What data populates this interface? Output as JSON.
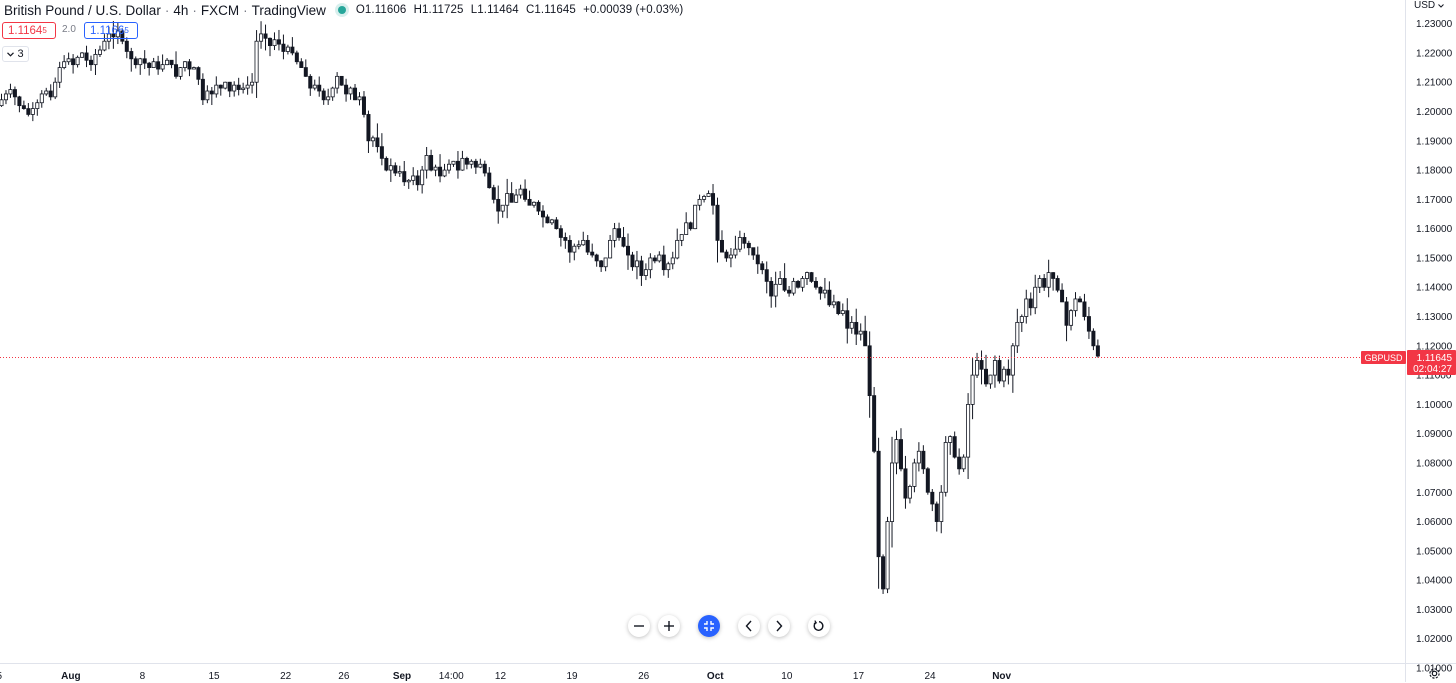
{
  "header": {
    "symbol": "British Pound / U.S. Dollar",
    "interval": "4h",
    "exchange": "FXCM",
    "platform": "TradingView",
    "open": "O1.11606",
    "high": "H1.11725",
    "low": "L1.11464",
    "close": "C1.11645",
    "change": "+0.00039 (+0.03%)"
  },
  "trade": {
    "sell_price": "1.1164",
    "sell_sup": "5",
    "spread": "2.0",
    "buy_price": "1.1166",
    "buy_sup": "5"
  },
  "indicators": {
    "count": "3",
    "chevron_icon": "chevron-down-icon"
  },
  "currency": "USD",
  "price_label": {
    "symbol": "GBPUSD",
    "value": "1.11645",
    "countdown": "02:04:27",
    "color": "#f23645"
  },
  "controls": [
    "zoom-out-icon",
    "zoom-in-icon",
    "reset-scale-icon",
    "scroll-left-icon",
    "scroll-right-icon",
    "reset-chart-icon"
  ],
  "colors": {
    "candle": "#131722",
    "accent": "#2962ff",
    "current_price": "#f23645"
  },
  "chart_data": {
    "type": "candlestick",
    "title": "",
    "xlabel": "",
    "ylabel": "",
    "ylim": [
      1.01,
      1.235
    ],
    "y_ticks": [
      "1.23000",
      "1.22000",
      "1.21000",
      "1.20000",
      "1.19000",
      "1.18000",
      "1.17000",
      "1.16000",
      "1.15000",
      "1.14000",
      "1.13000",
      "1.12000",
      "1.11000",
      "1.10000",
      "1.09000",
      "1.08000",
      "1.07000",
      "1.06000",
      "1.05000",
      "1.04000",
      "1.03000",
      "1.02000",
      "1.01000"
    ],
    "x_ticks": [
      {
        "label": "5",
        "idx": -0.5
      },
      {
        "label": "Aug",
        "idx": 15.5
      },
      {
        "label": "8",
        "idx": 31.5
      },
      {
        "label": "15",
        "idx": 47.5
      },
      {
        "label": "22",
        "idx": 63.5
      },
      {
        "label": "26",
        "idx": 76.5
      },
      {
        "label": "Sep",
        "idx": 89.5
      },
      {
        "label": "14:00",
        "idx": 100.5
      },
      {
        "label": "12",
        "idx": 111.5
      },
      {
        "label": "19",
        "idx": 127.5
      },
      {
        "label": "26",
        "idx": 143.5
      },
      {
        "label": "Oct",
        "idx": 159.5
      },
      {
        "label": "10",
        "idx": 175.5
      },
      {
        "label": "17",
        "idx": 191.5
      },
      {
        "label": "24",
        "idx": 207.5
      },
      {
        "label": "Nov",
        "idx": 223.5
      }
    ],
    "series_close": [
      1.204,
      1.206,
      1.2075,
      1.205,
      1.202,
      1.201,
      1.199,
      1.201,
      1.203,
      1.206,
      1.207,
      1.205,
      1.21,
      1.215,
      1.217,
      1.218,
      1.216,
      1.2185,
      1.22,
      1.2175,
      1.216,
      1.2195,
      1.221,
      1.224,
      1.2265,
      1.2255,
      1.2275,
      1.224,
      1.2205,
      1.218,
      1.216,
      1.218,
      1.2165,
      1.215,
      1.217,
      1.2145,
      1.216,
      1.2175,
      1.216,
      1.212,
      1.215,
      1.217,
      1.2145,
      1.215,
      1.211,
      1.204,
      1.207,
      1.206,
      1.209,
      1.208,
      1.21,
      1.207,
      1.209,
      1.2075,
      1.208,
      1.209,
      1.21,
      1.224,
      1.2265,
      1.225,
      1.2225,
      1.2245,
      1.223,
      1.2205,
      1.222,
      1.22,
      1.217,
      1.215,
      1.212,
      1.208,
      1.209,
      1.207,
      1.204,
      1.205,
      1.208,
      1.212,
      1.209,
      1.206,
      1.208,
      1.204,
      1.205,
      1.199,
      1.19,
      1.191,
      1.188,
      1.184,
      1.18,
      1.1815,
      1.179,
      1.1795,
      1.176,
      1.1765,
      1.178,
      1.175,
      1.18,
      1.185,
      1.18,
      1.181,
      1.178,
      1.18,
      1.182,
      1.183,
      1.18,
      1.184,
      1.182,
      1.183,
      1.181,
      1.182,
      1.179,
      1.174,
      1.17,
      1.166,
      1.168,
      1.172,
      1.169,
      1.1715,
      1.1735,
      1.17,
      1.168,
      1.169,
      1.166,
      1.164,
      1.162,
      1.163,
      1.16,
      1.157,
      1.156,
      1.152,
      1.154,
      1.1545,
      1.156,
      1.152,
      1.151,
      1.149,
      1.147,
      1.15,
      1.156,
      1.16,
      1.157,
      1.154,
      1.151,
      1.147,
      1.149,
      1.144,
      1.146,
      1.15,
      1.149,
      1.151,
      1.146,
      1.148,
      1.15,
      1.156,
      1.158,
      1.162,
      1.16,
      1.168,
      1.17,
      1.171,
      1.172,
      1.168,
      1.156,
      1.152,
      1.15,
      1.151,
      1.153,
      1.157,
      1.155,
      1.1535,
      1.151,
      1.148,
      1.146,
      1.142,
      1.137,
      1.141,
      1.143,
      1.139,
      1.138,
      1.142,
      1.14,
      1.143,
      1.145,
      1.142,
      1.14,
      1.138,
      1.139,
      1.134,
      1.135,
      1.131,
      1.132,
      1.126,
      1.128,
      1.124,
      1.125,
      1.12,
      1.103,
      1.084,
      1.048,
      1.037,
      1.06,
      1.08,
      1.088,
      1.078,
      1.068,
      1.072,
      1.08,
      1.084,
      1.078,
      1.07,
      1.066,
      1.06,
      1.07,
      1.087,
      1.089,
      1.082,
      1.078,
      1.082,
      1.1,
      1.11,
      1.115,
      1.112,
      1.107,
      1.11,
      1.115,
      1.108,
      1.112,
      1.11,
      1.12,
      1.128,
      1.13,
      1.136,
      1.133,
      1.14,
      1.143,
      1.14,
      1.145,
      1.143,
      1.139,
      1.135,
      1.127,
      1.132,
      1.136,
      1.135,
      1.13,
      1.125,
      1.12,
      1.1165
    ]
  }
}
